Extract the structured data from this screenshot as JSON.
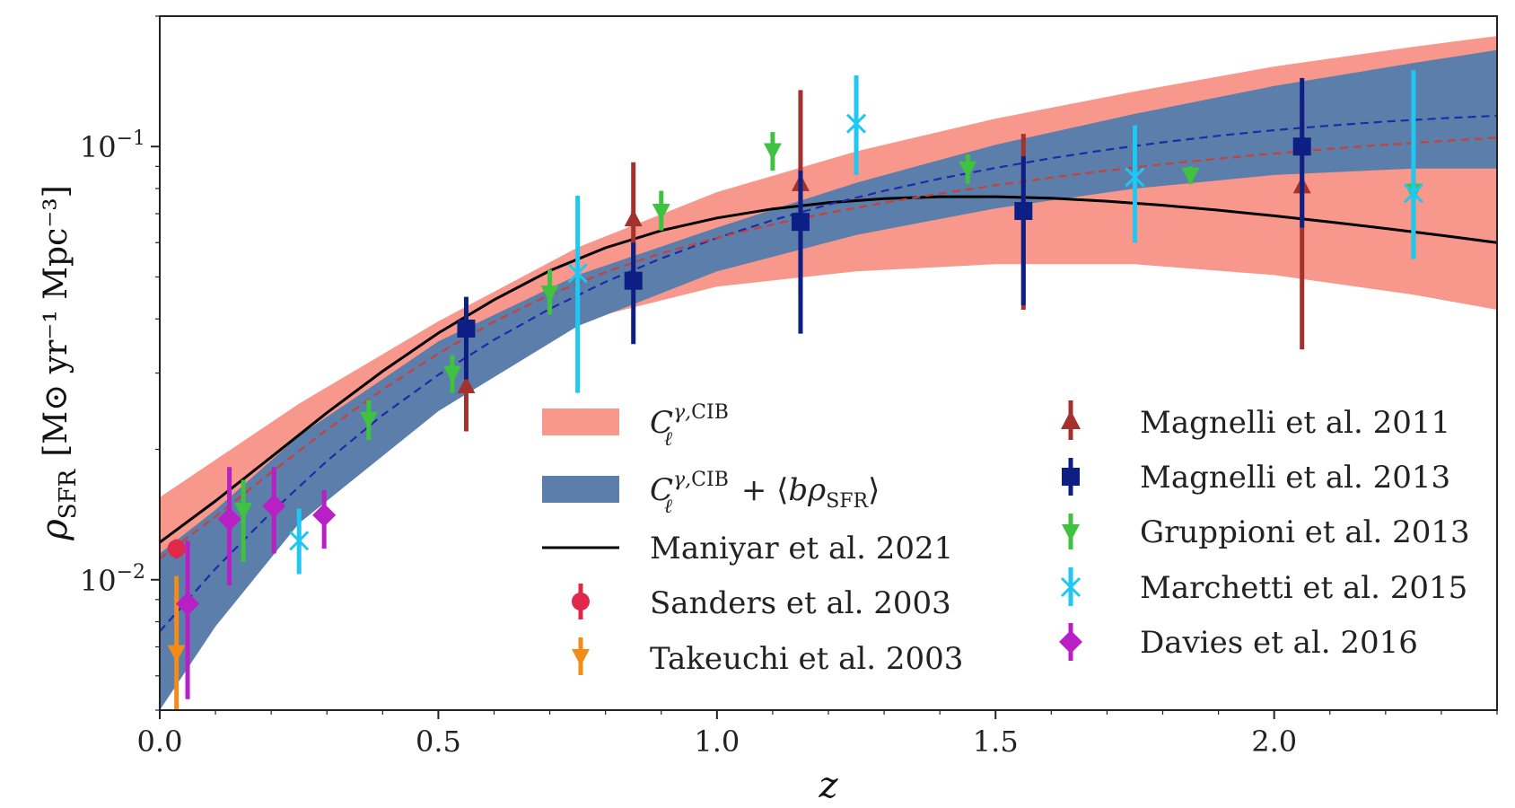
{
  "chart_data": {
    "type": "line",
    "title": "",
    "xlabel": "z",
    "ylabel": "ρ_SFR [M⊙ yr⁻¹ Mpc⁻³]",
    "ylabel_main": "ρ",
    "ylabel_sub": "SFR",
    "ylabel_units": "[M⊙ yr⁻¹ Mpc⁻³]",
    "xlim": [
      0.0,
      2.4
    ],
    "ylim": [
      0.005,
      0.2
    ],
    "yscale": "log",
    "grid": false,
    "legend_placement": "bottom-right",
    "x_ticks": [
      {
        "value": 0.0,
        "label": "0.0"
      },
      {
        "value": 0.5,
        "label": "0.5"
      },
      {
        "value": 1.0,
        "label": "1.0"
      },
      {
        "value": 1.5,
        "label": "1.5"
      },
      {
        "value": 2.0,
        "label": "2.0"
      }
    ],
    "y_ticks": [
      {
        "value": 0.01,
        "base": "10",
        "exp": "−2"
      },
      {
        "value": 0.1,
        "base": "10",
        "exp": "−1"
      }
    ],
    "bands": [
      {
        "legend": "C_ℓ^{γ,CIB}",
        "color": "#f8978c",
        "x": [
          0.0,
          0.25,
          0.5,
          0.75,
          1.0,
          1.25,
          1.5,
          1.75,
          2.0,
          2.25,
          2.4
        ],
        "lower": [
          0.0105,
          0.0185,
          0.0285,
          0.0395,
          0.0475,
          0.0515,
          0.0535,
          0.0535,
          0.0505,
          0.0455,
          0.042
        ],
        "upper": [
          0.0155,
          0.0255,
          0.0395,
          0.0585,
          0.0785,
          0.0975,
          0.116,
          0.134,
          0.153,
          0.17,
          0.18
        ]
      },
      {
        "legend": "C_ℓ^{γ,CIB} + ⟨bρ_SFR⟩",
        "color": "#5b7eab",
        "x": [
          0.0,
          0.1,
          0.25,
          0.5,
          0.75,
          1.0,
          1.25,
          1.5,
          1.75,
          2.0,
          2.25,
          2.4
        ],
        "lower": [
          0.005,
          0.0078,
          0.0135,
          0.0245,
          0.0385,
          0.0515,
          0.0625,
          0.072,
          0.08,
          0.086,
          0.089,
          0.089
        ],
        "upper": [
          0.0115,
          0.0145,
          0.0215,
          0.0355,
          0.0505,
          0.065,
          0.0825,
          0.101,
          0.119,
          0.138,
          0.156,
          0.167
        ]
      }
    ],
    "series_lines": [
      {
        "name": "Maniyar et al. 2021",
        "color": "#000000",
        "style": "solid",
        "x": [
          0.0,
          0.1,
          0.2,
          0.3,
          0.4,
          0.5,
          0.6,
          0.7,
          0.8,
          0.9,
          1.0,
          1.1,
          1.2,
          1.3,
          1.4,
          1.5,
          1.6,
          1.7,
          1.8,
          1.9,
          2.0,
          2.1,
          2.2,
          2.3,
          2.4
        ],
        "y": [
          0.0122,
          0.0152,
          0.0192,
          0.0243,
          0.0303,
          0.0371,
          0.0443,
          0.0517,
          0.0584,
          0.064,
          0.0684,
          0.0718,
          0.0742,
          0.0758,
          0.0766,
          0.0766,
          0.076,
          0.0748,
          0.0732,
          0.0713,
          0.0692,
          0.067,
          0.0647,
          0.0624,
          0.06
        ]
      },
      {
        "name": "",
        "color": "#1f2aa8",
        "style": "dashed",
        "x": [
          0.0,
          0.1,
          0.2,
          0.3,
          0.4,
          0.5,
          0.6,
          0.7,
          0.8,
          0.9,
          1.0,
          1.1,
          1.2,
          1.3,
          1.4,
          1.5,
          1.6,
          1.7,
          1.8,
          1.9,
          2.0,
          2.1,
          2.2,
          2.3,
          2.4
        ],
        "y": [
          0.0076,
          0.0106,
          0.0143,
          0.0188,
          0.024,
          0.0297,
          0.0358,
          0.0422,
          0.0487,
          0.0552,
          0.0615,
          0.0676,
          0.0735,
          0.079,
          0.0843,
          0.0893,
          0.094,
          0.0983,
          0.1023,
          0.1059,
          0.1091,
          0.1118,
          0.1142,
          0.1162,
          0.1178
        ]
      },
      {
        "name": "",
        "color": "#c8403a",
        "style": "dashed",
        "x": [
          0.0,
          0.1,
          0.2,
          0.3,
          0.4,
          0.5,
          0.6,
          0.7,
          0.8,
          0.9,
          1.0,
          1.1,
          1.2,
          1.3,
          1.4,
          1.5,
          1.6,
          1.7,
          1.8,
          1.9,
          2.0,
          2.1,
          2.2,
          2.3,
          2.4
        ],
        "y": [
          0.0112,
          0.014,
          0.0177,
          0.0222,
          0.0275,
          0.0333,
          0.0394,
          0.0455,
          0.0513,
          0.0567,
          0.0616,
          0.0661,
          0.0703,
          0.0742,
          0.0779,
          0.0814,
          0.0848,
          0.088,
          0.091,
          0.0938,
          0.0964,
          0.0988,
          0.101,
          0.103,
          0.1048
        ]
      }
    ],
    "series": [
      {
        "name": "Sanders et al. 2003",
        "color": "#e0284b",
        "marker": "circle",
        "points": [
          {
            "x": 0.03,
            "y": 0.0118,
            "ylo": 0.0112,
            "yhi": 0.0124
          }
        ]
      },
      {
        "name": "Takeuchi et al. 2003",
        "color": "#f28c16",
        "marker": "tri-down",
        "points": [
          {
            "x": 0.03,
            "y": 0.0068,
            "ylo": 0.005,
            "yhi": 0.0102
          }
        ]
      },
      {
        "name": "Magnelli et al. 2011",
        "color": "#a3322e",
        "marker": "tri-up",
        "points": [
          {
            "x": 0.55,
            "y": 0.028,
            "ylo": 0.022,
            "yhi": 0.036
          },
          {
            "x": 0.85,
            "y": 0.068,
            "ylo": 0.051,
            "yhi": 0.092
          },
          {
            "x": 1.15,
            "y": 0.082,
            "ylo": 0.045,
            "yhi": 0.135
          },
          {
            "x": 1.55,
            "y": 0.072,
            "ylo": 0.042,
            "yhi": 0.107
          },
          {
            "x": 2.05,
            "y": 0.081,
            "ylo": 0.034,
            "yhi": 0.128
          }
        ]
      },
      {
        "name": "Magnelli et al. 2013",
        "color": "#0d1f85",
        "marker": "square",
        "points": [
          {
            "x": 0.55,
            "y": 0.038,
            "ylo": 0.029,
            "yhi": 0.045
          },
          {
            "x": 0.85,
            "y": 0.049,
            "ylo": 0.035,
            "yhi": 0.06
          },
          {
            "x": 1.15,
            "y": 0.067,
            "ylo": 0.037,
            "yhi": 0.088
          },
          {
            "x": 1.55,
            "y": 0.071,
            "ylo": 0.043,
            "yhi": 0.095
          },
          {
            "x": 2.05,
            "y": 0.1,
            "ylo": 0.065,
            "yhi": 0.144
          }
        ]
      },
      {
        "name": "Gruppioni et al. 2013",
        "color": "#3fc23f",
        "marker": "tri-down",
        "points": [
          {
            "x": 0.15,
            "y": 0.0145,
            "ylo": 0.011,
            "yhi": 0.017
          },
          {
            "x": 0.375,
            "y": 0.0235,
            "ylo": 0.021,
            "yhi": 0.026
          },
          {
            "x": 0.525,
            "y": 0.03,
            "ylo": 0.027,
            "yhi": 0.033
          },
          {
            "x": 0.7,
            "y": 0.046,
            "ylo": 0.041,
            "yhi": 0.052
          },
          {
            "x": 0.9,
            "y": 0.071,
            "ylo": 0.064,
            "yhi": 0.079
          },
          {
            "x": 1.1,
            "y": 0.098,
            "ylo": 0.088,
            "yhi": 0.108
          },
          {
            "x": 1.45,
            "y": 0.089,
            "ylo": 0.082,
            "yhi": 0.096
          },
          {
            "x": 1.85,
            "y": 0.086,
            "ylo": 0.082,
            "yhi": 0.09
          },
          {
            "x": 2.25,
            "y": 0.079,
            "ylo": 0.055,
            "yhi": 0.083
          }
        ]
      },
      {
        "name": "Marchetti et al. 2015",
        "color": "#1ec8f3",
        "marker": "x",
        "points": [
          {
            "x": 0.25,
            "y": 0.0123,
            "ylo": 0.0103,
            "yhi": 0.0146
          },
          {
            "x": 0.75,
            "y": 0.051,
            "ylo": 0.027,
            "yhi": 0.077
          },
          {
            "x": 1.25,
            "y": 0.113,
            "ylo": 0.086,
            "yhi": 0.146
          },
          {
            "x": 1.75,
            "y": 0.085,
            "ylo": 0.06,
            "yhi": 0.112
          },
          {
            "x": 2.25,
            "y": 0.078,
            "ylo": 0.055,
            "yhi": 0.15
          }
        ]
      },
      {
        "name": "Davies et al. 2016",
        "color": "#b81fc4",
        "marker": "diamond",
        "points": [
          {
            "x": 0.05,
            "y": 0.0088,
            "ylo": 0.0053,
            "yhi": 0.0123
          },
          {
            "x": 0.125,
            "y": 0.0138,
            "ylo": 0.0097,
            "yhi": 0.0182
          },
          {
            "x": 0.205,
            "y": 0.0148,
            "ylo": 0.0115,
            "yhi": 0.0182
          },
          {
            "x": 0.295,
            "y": 0.0141,
            "ylo": 0.0118,
            "yhi": 0.0161
          }
        ]
      }
    ]
  }
}
